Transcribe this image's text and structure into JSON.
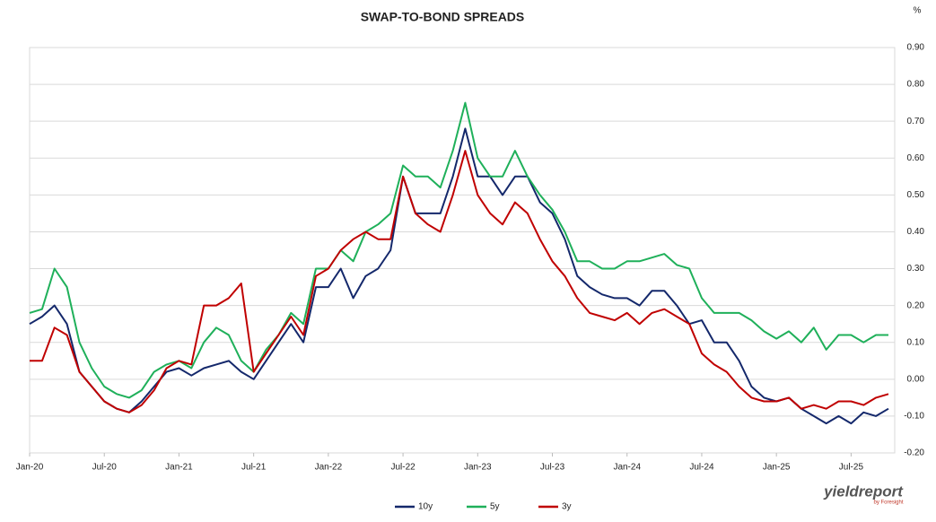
{
  "chart_data": {
    "type": "line",
    "title": "SWAP-TO-BOND SPREADS",
    "y_unit": "%",
    "x": [
      "2020-01",
      "2020-02",
      "2020-03",
      "2020-04",
      "2020-05",
      "2020-06",
      "2020-07",
      "2020-08",
      "2020-09",
      "2020-10",
      "2020-11",
      "2020-12",
      "2021-01",
      "2021-02",
      "2021-03",
      "2021-04",
      "2021-05",
      "2021-06",
      "2021-07",
      "2021-08",
      "2021-09",
      "2021-10",
      "2021-11",
      "2021-12",
      "2022-01",
      "2022-02",
      "2022-03",
      "2022-04",
      "2022-05",
      "2022-06",
      "2022-07",
      "2022-08",
      "2022-09",
      "2022-10",
      "2022-11",
      "2022-12",
      "2023-01",
      "2023-02",
      "2023-03",
      "2023-04",
      "2023-05",
      "2023-06",
      "2023-07",
      "2023-08",
      "2023-09",
      "2023-10",
      "2023-11",
      "2023-12",
      "2024-01",
      "2024-02",
      "2024-03",
      "2024-04",
      "2024-05",
      "2024-06",
      "2024-07",
      "2024-08",
      "2024-09",
      "2024-10",
      "2024-11",
      "2024-12",
      "2025-01",
      "2025-02",
      "2025-03",
      "2025-04",
      "2025-05",
      "2025-06",
      "2025-07",
      "2025-08",
      "2025-09",
      "2025-10"
    ],
    "series": [
      {
        "name": "10y",
        "color": "#14286b",
        "values": [
          0.15,
          0.17,
          0.2,
          0.15,
          0.02,
          -0.02,
          -0.06,
          -0.08,
          -0.09,
          -0.06,
          -0.02,
          0.02,
          0.03,
          0.01,
          0.03,
          0.04,
          0.05,
          0.02,
          0.0,
          0.05,
          0.1,
          0.15,
          0.1,
          0.25,
          0.25,
          0.3,
          0.22,
          0.28,
          0.3,
          0.35,
          0.55,
          0.45,
          0.45,
          0.45,
          0.55,
          0.68,
          0.55,
          0.55,
          0.5,
          0.55,
          0.55,
          0.48,
          0.45,
          0.38,
          0.28,
          0.25,
          0.23,
          0.22,
          0.22,
          0.2,
          0.24,
          0.24,
          0.2,
          0.15,
          0.16,
          0.1,
          0.1,
          0.05,
          -0.02,
          -0.05,
          -0.06,
          -0.05,
          -0.08,
          -0.1,
          -0.12,
          -0.1,
          -0.12,
          -0.09,
          -0.1,
          -0.08
        ]
      },
      {
        "name": "5y",
        "color": "#1fb05a",
        "values": [
          0.18,
          0.19,
          0.3,
          0.25,
          0.1,
          0.03,
          -0.02,
          -0.04,
          -0.05,
          -0.03,
          0.02,
          0.04,
          0.05,
          0.03,
          0.1,
          0.14,
          0.12,
          0.05,
          0.02,
          0.08,
          0.12,
          0.18,
          0.15,
          0.3,
          0.3,
          0.35,
          0.32,
          0.4,
          0.42,
          0.45,
          0.58,
          0.55,
          0.55,
          0.52,
          0.62,
          0.75,
          0.6,
          0.55,
          0.55,
          0.62,
          0.55,
          0.5,
          0.46,
          0.4,
          0.32,
          0.32,
          0.3,
          0.3,
          0.32,
          0.32,
          0.33,
          0.34,
          0.31,
          0.3,
          0.22,
          0.18,
          0.18,
          0.18,
          0.16,
          0.13,
          0.11,
          0.13,
          0.1,
          0.14,
          0.08,
          0.12,
          0.12,
          0.1,
          0.12,
          0.12
        ]
      },
      {
        "name": "3y",
        "color": "#c00000",
        "values": [
          0.05,
          0.05,
          0.14,
          0.12,
          0.02,
          -0.02,
          -0.06,
          -0.08,
          -0.09,
          -0.07,
          -0.03,
          0.03,
          0.05,
          0.04,
          0.2,
          0.2,
          0.22,
          0.26,
          0.02,
          0.07,
          0.12,
          0.17,
          0.12,
          0.28,
          0.3,
          0.35,
          0.38,
          0.4,
          0.38,
          0.38,
          0.55,
          0.45,
          0.42,
          0.4,
          0.5,
          0.62,
          0.5,
          0.45,
          0.42,
          0.48,
          0.45,
          0.38,
          0.32,
          0.28,
          0.22,
          0.18,
          0.17,
          0.16,
          0.18,
          0.15,
          0.18,
          0.19,
          0.17,
          0.15,
          0.07,
          0.04,
          0.02,
          -0.02,
          -0.05,
          -0.06,
          -0.06,
          -0.05,
          -0.08,
          -0.07,
          -0.08,
          -0.06,
          -0.06,
          -0.07,
          -0.05,
          -0.04
        ]
      }
    ],
    "xlim": [
      "2020-01",
      "2025-10"
    ],
    "xticks": [
      {
        "value": "2020-01",
        "label": "Jan-20"
      },
      {
        "value": "2020-07",
        "label": "Jul-20"
      },
      {
        "value": "2021-01",
        "label": "Jan-21"
      },
      {
        "value": "2021-07",
        "label": "Jul-21"
      },
      {
        "value": "2022-01",
        "label": "Jan-22"
      },
      {
        "value": "2022-07",
        "label": "Jul-22"
      },
      {
        "value": "2023-01",
        "label": "Jan-23"
      },
      {
        "value": "2023-07",
        "label": "Jul-23"
      },
      {
        "value": "2024-01",
        "label": "Jan-24"
      },
      {
        "value": "2024-07",
        "label": "Jul-24"
      },
      {
        "value": "2025-01",
        "label": "Jan-25"
      },
      {
        "value": "2025-07",
        "label": "Jul-25"
      }
    ],
    "ylim": [
      -0.2,
      0.9
    ],
    "yticks": [
      {
        "value": -0.2,
        "label": "-0.20"
      },
      {
        "value": -0.1,
        "label": "-0.10"
      },
      {
        "value": 0,
        "label": "0.00"
      },
      {
        "value": 0.1,
        "label": "0.10"
      },
      {
        "value": 0.2,
        "label": "0.20"
      },
      {
        "value": 0.3,
        "label": "0.30"
      },
      {
        "value": 0.4,
        "label": "0.40"
      },
      {
        "value": 0.5,
        "label": "0.50"
      },
      {
        "value": 0.6,
        "label": "0.60"
      },
      {
        "value": 0.7,
        "label": "0.70"
      },
      {
        "value": 0.8,
        "label": "0.80"
      },
      {
        "value": 0.9,
        "label": "0.90"
      }
    ],
    "grid": true,
    "legend": "bottom",
    "logo": {
      "name": "yieldreport",
      "by": "by Foresight"
    }
  }
}
